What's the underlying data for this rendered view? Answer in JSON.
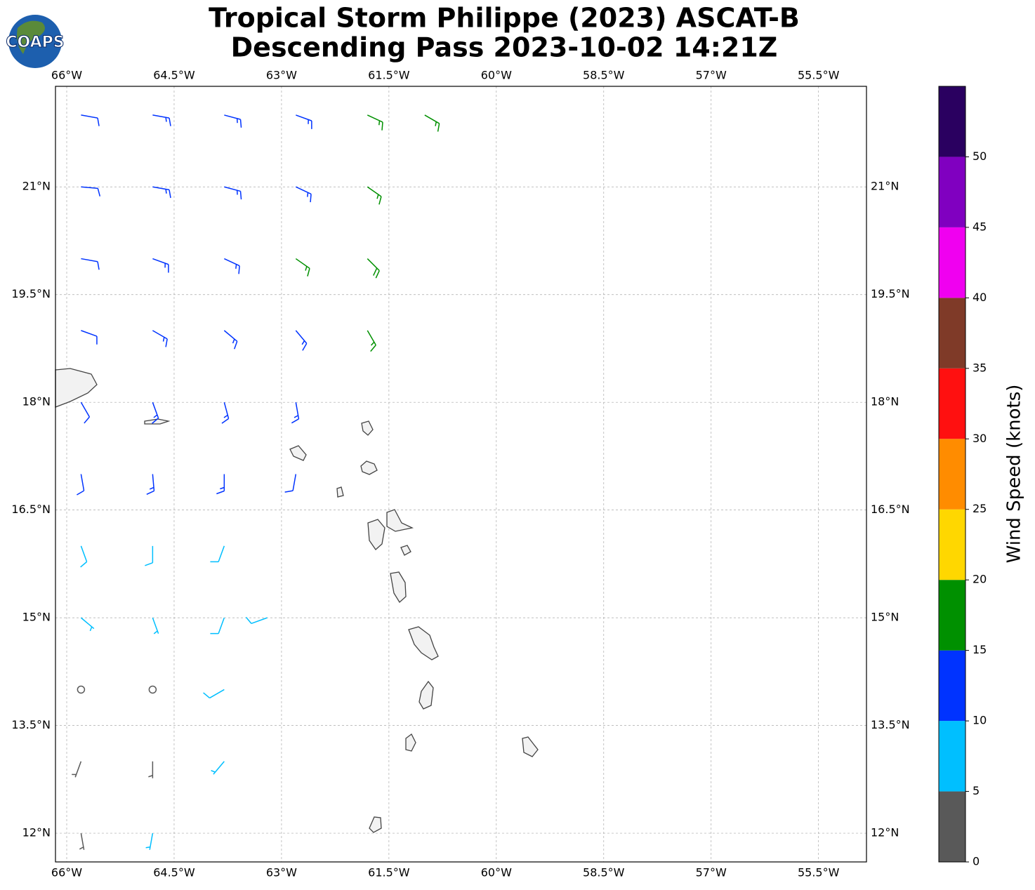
{
  "logo_text": "COAPS",
  "chart_data": {
    "type": "barb",
    "title": "Tropical Storm Philippe (2023) ASCAT-B",
    "subtitle": "Descending Pass 2023-10-02 14:21Z",
    "xlim": [
      -66.157,
      -54.83
    ],
    "ylim": [
      11.6,
      22.4
    ],
    "xticks": [
      {
        "value": -66,
        "label": "66°W"
      },
      {
        "value": -64.5,
        "label": "64.5°W"
      },
      {
        "value": -63,
        "label": "63°W"
      },
      {
        "value": -61.5,
        "label": "61.5°W"
      },
      {
        "value": -60,
        "label": "60°W"
      },
      {
        "value": -58.5,
        "label": "58.5°W"
      },
      {
        "value": -57,
        "label": "57°W"
      },
      {
        "value": -55.5,
        "label": "55.5°W"
      }
    ],
    "yticks": [
      {
        "value": 12,
        "label": "12°N"
      },
      {
        "value": 13.5,
        "label": "13.5°N"
      },
      {
        "value": 15,
        "label": "15°N"
      },
      {
        "value": 16.5,
        "label": "16.5°N"
      },
      {
        "value": 18,
        "label": "18°N"
      },
      {
        "value": 19.5,
        "label": "19.5°N"
      },
      {
        "value": 21,
        "label": "21°N"
      }
    ],
    "grid": true,
    "barbs": {
      "lon": [
        -65.8,
        -64.8,
        -63.8,
        -62.8,
        -61.8,
        -61.0,
        -65.8,
        -64.8,
        -63.8,
        -62.8,
        -61.8,
        -65.8,
        -64.8,
        -63.8,
        -62.8,
        -61.8,
        -65.8,
        -64.8,
        -63.8,
        -62.8,
        -61.8,
        -65.8,
        -64.8,
        -63.8,
        -62.8,
        -65.8,
        -64.8,
        -63.8,
        -62.8,
        -65.8,
        -64.8,
        -63.8,
        -65.8,
        -64.8,
        -63.8,
        -63.2,
        -65.8,
        -64.8,
        -63.8,
        -65.8,
        -64.8,
        -63.8,
        -65.8,
        -64.8
      ],
      "lat": [
        22,
        22,
        22,
        22,
        22,
        22,
        21,
        21,
        21,
        21,
        21,
        20,
        20,
        20,
        20,
        20,
        19,
        19,
        19,
        19,
        19,
        18,
        18,
        18,
        18,
        17,
        17,
        17,
        17,
        16,
        16,
        16,
        15,
        15,
        15,
        15,
        14,
        14,
        14,
        13,
        13,
        13,
        12,
        12
      ],
      "speed": [
        12,
        13,
        13,
        14,
        16,
        17,
        12,
        13,
        13,
        14,
        17,
        12,
        13,
        14,
        17,
        18,
        12,
        13,
        14,
        14,
        17,
        12,
        13,
        14,
        13,
        12,
        13,
        14,
        12,
        8,
        9,
        8,
        7,
        7,
        8,
        9,
        1,
        1,
        8,
        3,
        4,
        7,
        4,
        6
      ],
      "direction": [
        100,
        100,
        105,
        110,
        115,
        120,
        95,
        100,
        105,
        115,
        125,
        100,
        110,
        115,
        125,
        135,
        110,
        120,
        130,
        140,
        150,
        150,
        160,
        165,
        170,
        170,
        175,
        180,
        190,
        160,
        180,
        200,
        130,
        160,
        200,
        250,
        0,
        0,
        240,
        200,
        180,
        220,
        170,
        190
      ]
    },
    "colorbar": {
      "label": "Wind Speed (knots)",
      "clim": [
        0,
        55
      ],
      "ticks": [
        0,
        5,
        10,
        15,
        20,
        25,
        30,
        35,
        40,
        45,
        50
      ],
      "bounds": [
        0,
        5,
        10,
        15,
        20,
        25,
        30,
        35,
        40,
        45,
        50,
        55
      ],
      "colors": [
        "#595959",
        "#00bfff",
        "#0033ff",
        "#009000",
        "#ffd700",
        "#ff8c00",
        "#ff1010",
        "#7f3a28",
        "#f000f0",
        "#8000c0",
        "#2a0060"
      ]
    }
  }
}
